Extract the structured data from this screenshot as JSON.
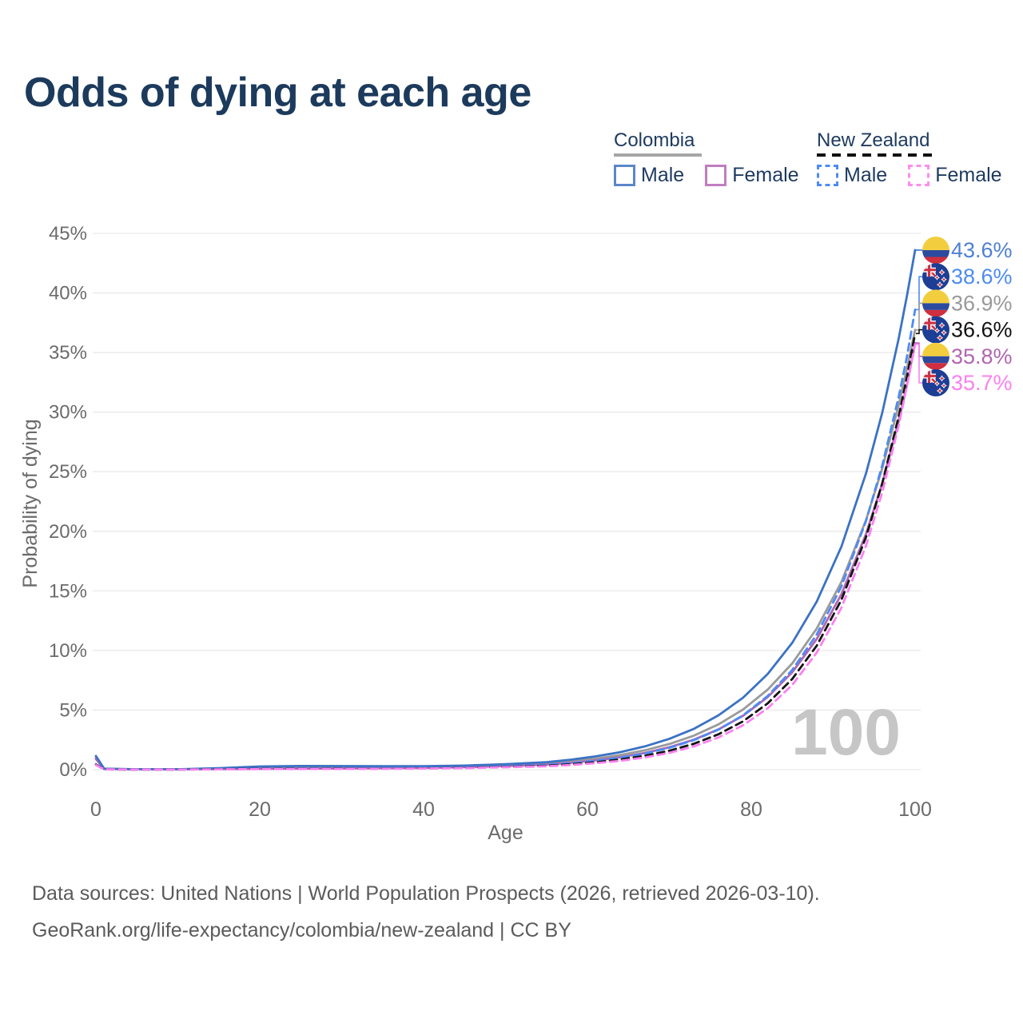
{
  "title": "Odds of dying at each age",
  "legend": {
    "groups": [
      {
        "id": "colombia",
        "name": "Colombia",
        "line_style": "solid",
        "underline_color": "#A6A6A6",
        "items": [
          {
            "id": "male",
            "label": "Male",
            "color": "#5B87C8",
            "dashed": false,
            "checked": false
          },
          {
            "id": "female",
            "label": "Female",
            "color": "#C07EC0",
            "dashed": false,
            "checked": false
          }
        ]
      },
      {
        "id": "new-zealand",
        "name": "New Zealand",
        "line_style": "dashed",
        "underline_color": "#111111",
        "items": [
          {
            "id": "male",
            "label": "Male",
            "color": "#4D8BF5",
            "dashed": true,
            "checked": false
          },
          {
            "id": "female",
            "label": "Female",
            "color": "#FB8DF0",
            "dashed": true,
            "checked": false
          }
        ]
      }
    ]
  },
  "chart_data": {
    "type": "line",
    "title": "Odds of dying at each age",
    "xlabel": "Age",
    "ylabel": "Probability of dying",
    "xlim": [
      0,
      100
    ],
    "ylim": [
      0,
      45
    ],
    "grid": "horizontal",
    "legend_position": "top-right",
    "watermark": "100",
    "xticks": {
      "values": [
        0,
        20,
        40,
        60,
        80,
        100
      ],
      "labels": [
        "0",
        "20",
        "40",
        "60",
        "80",
        "100"
      ]
    },
    "yticks": {
      "values": [
        0,
        5,
        10,
        15,
        20,
        25,
        30,
        35,
        40,
        45
      ],
      "labels": [
        "0%",
        "5%",
        "10%",
        "15%",
        "20%",
        "25%",
        "30%",
        "35%",
        "40%",
        "45%"
      ]
    },
    "x": [
      0,
      1,
      5,
      10,
      15,
      20,
      25,
      30,
      35,
      40,
      45,
      50,
      55,
      58,
      61,
      64,
      67,
      70,
      73,
      76,
      79,
      82,
      85,
      88,
      91,
      94,
      96,
      98,
      99,
      100
    ],
    "series": [
      {
        "id": "colombia-combined",
        "name": "Colombia (both sexes)",
        "country": "Colombia",
        "sex": "combined",
        "color": "#9A9A9A",
        "label_color": "#9A9A9A",
        "dash": false,
        "flag": "colombia",
        "end_label": "36.9%",
        "values": [
          1.0,
          0.07,
          0.03,
          0.03,
          0.08,
          0.17,
          0.2,
          0.2,
          0.2,
          0.22,
          0.27,
          0.37,
          0.52,
          0.69,
          0.92,
          1.22,
          1.62,
          2.15,
          2.86,
          3.8,
          5.05,
          6.71,
          8.92,
          11.85,
          15.75,
          20.93,
          25.3,
          30.6,
          33.65,
          36.9
        ]
      },
      {
        "id": "colombia-female",
        "name": "Colombia Female",
        "country": "Colombia",
        "sex": "female",
        "color": "#B066B0",
        "label_color": "#B066B0",
        "dash": false,
        "flag": "colombia",
        "end_label": "35.8%",
        "values": [
          0.9,
          0.06,
          0.025,
          0.025,
          0.05,
          0.07,
          0.085,
          0.1,
          0.12,
          0.15,
          0.21,
          0.3,
          0.43,
          0.58,
          0.78,
          1.04,
          1.4,
          1.88,
          2.52,
          3.38,
          4.53,
          6.09,
          8.17,
          10.97,
          14.72,
          19.76,
          24.05,
          29.25,
          32.3,
          35.8
        ]
      },
      {
        "id": "colombia-male",
        "name": "Colombia Male",
        "country": "Colombia",
        "sex": "male",
        "color": "#3B72C4",
        "label_color": "#4E80D6",
        "dash": false,
        "flag": "colombia",
        "end_label": "43.6%",
        "values": [
          1.15,
          0.08,
          0.035,
          0.035,
          0.12,
          0.27,
          0.31,
          0.3,
          0.29,
          0.29,
          0.34,
          0.46,
          0.63,
          0.84,
          1.11,
          1.47,
          1.95,
          2.59,
          3.43,
          4.56,
          6.04,
          8.02,
          10.64,
          14.11,
          18.72,
          24.84,
          29.98,
          36.19,
          39.76,
          43.6
        ]
      },
      {
        "id": "new-zealand-male",
        "name": "New Zealand Male",
        "country": "New Zealand",
        "sex": "male",
        "color": "#4D8BF5",
        "label_color": "#4D8BF5",
        "dash": true,
        "flag": "new-zealand",
        "end_label": "38.6%",
        "values": [
          0.45,
          0.03,
          0.01,
          0.012,
          0.05,
          0.09,
          0.1,
          0.1,
          0.12,
          0.14,
          0.19,
          0.28,
          0.4,
          0.54,
          0.74,
          1.0,
          1.35,
          1.83,
          2.48,
          3.36,
          4.56,
          6.18,
          8.37,
          11.35,
          15.38,
          20.85,
          25.55,
          31.3,
          34.65,
          38.6
        ]
      },
      {
        "id": "new-zealand-combined",
        "name": "New Zealand (both sexes)",
        "country": "New Zealand",
        "sex": "combined",
        "color": "#141414",
        "label_color": "#111111",
        "dash": true,
        "flag": "new-zealand",
        "end_label": "36.6%",
        "values": [
          0.42,
          0.028,
          0.009,
          0.011,
          0.04,
          0.07,
          0.075,
          0.08,
          0.09,
          0.11,
          0.15,
          0.23,
          0.33,
          0.45,
          0.62,
          0.85,
          1.16,
          1.59,
          2.17,
          2.97,
          4.06,
          5.56,
          7.61,
          10.41,
          14.25,
          19.5,
          24.05,
          29.65,
          32.95,
          36.6
        ]
      },
      {
        "id": "new-zealand-female",
        "name": "New Zealand Female",
        "country": "New Zealand",
        "sex": "female",
        "color": "#FB80F0",
        "label_color": "#FB80F0",
        "dash": true,
        "flag": "new-zealand",
        "end_label": "35.7%",
        "values": [
          0.38,
          0.025,
          0.008,
          0.009,
          0.03,
          0.05,
          0.055,
          0.06,
          0.075,
          0.095,
          0.13,
          0.2,
          0.28,
          0.39,
          0.54,
          0.74,
          1.02,
          1.41,
          1.95,
          2.7,
          3.73,
          5.15,
          7.11,
          9.83,
          13.59,
          18.78,
          23.3,
          28.9,
          32.2,
          35.7
        ]
      }
    ]
  },
  "footer": {
    "line1": "Data sources: United Nations | World Population Prospects (2026, retrieved 2026-03-10).",
    "line2": "GeoRank.org/life-expectancy/colombia/new-zealand | CC BY"
  }
}
